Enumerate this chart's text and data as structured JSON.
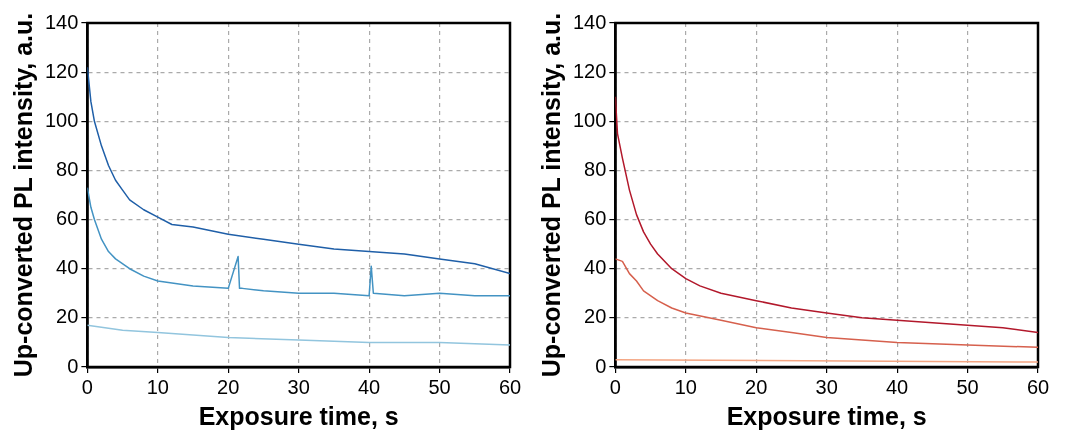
{
  "chart_data": [
    {
      "type": "line",
      "xlabel": "Exposure time, s",
      "ylabel": "Up‑converted PL intensity, a.u.",
      "xlim": [
        0,
        60
      ],
      "xticks": [
        0,
        10,
        20,
        30,
        40,
        50,
        60
      ],
      "ylim": [
        0,
        140
      ],
      "yticks": [
        0,
        20,
        40,
        60,
        80,
        100,
        120,
        140
      ],
      "grid": true,
      "marker": "none",
      "series": [
        {
          "color": "#1f5fa8",
          "x": [
            0,
            0.5,
            1,
            2,
            3,
            4,
            5,
            6,
            8,
            10,
            12,
            15,
            20,
            25,
            30,
            35,
            40,
            45,
            50,
            55,
            60
          ],
          "values": [
            122,
            108,
            100,
            90,
            82,
            76,
            72,
            68,
            64,
            61,
            58,
            57,
            54,
            52,
            50,
            48,
            47,
            46,
            44,
            42,
            38
          ]
        },
        {
          "color": "#4393c3",
          "x": [
            0,
            0.5,
            1,
            2,
            3,
            4,
            6,
            8,
            10,
            15,
            20,
            21.4,
            21.6,
            22,
            25,
            30,
            35,
            40,
            40.3,
            40.6,
            45,
            50,
            55,
            60
          ],
          "values": [
            73,
            65,
            60,
            52,
            47,
            44,
            40,
            37,
            35,
            33,
            32,
            45,
            32,
            32,
            31,
            30,
            30,
            29,
            41,
            30,
            29,
            30,
            29,
            29
          ]
        },
        {
          "color": "#92c5de",
          "x": [
            0,
            5,
            10,
            20,
            30,
            40,
            50,
            60
          ],
          "values": [
            17,
            15,
            14,
            12,
            11,
            10,
            10,
            9
          ]
        }
      ]
    },
    {
      "type": "line",
      "xlabel": "Exposure time, s",
      "ylabel": "Up‑converted PL intensity, a.u.",
      "xlim": [
        0,
        60
      ],
      "xticks": [
        0,
        10,
        20,
        30,
        40,
        50,
        60
      ],
      "ylim": [
        0,
        140
      ],
      "yticks": [
        0,
        20,
        40,
        60,
        80,
        100,
        120,
        140
      ],
      "grid": true,
      "marker": "none",
      "series": [
        {
          "color": "#b2182b",
          "x": [
            0,
            0.3,
            1,
            2,
            3,
            4,
            5,
            6,
            8,
            10,
            12,
            15,
            20,
            25,
            30,
            35,
            40,
            45,
            50,
            55,
            60
          ],
          "values": [
            110,
            95,
            85,
            72,
            62,
            55,
            50,
            46,
            40,
            36,
            33,
            30,
            27,
            24,
            22,
            20,
            19,
            18,
            17,
            16,
            14
          ]
        },
        {
          "color": "#d6604d",
          "x": [
            0,
            1,
            2,
            3,
            4,
            6,
            8,
            10,
            15,
            20,
            25,
            30,
            35,
            40,
            50,
            60
          ],
          "values": [
            44,
            43,
            38,
            35,
            31,
            27,
            24,
            22,
            19,
            16,
            14,
            12,
            11,
            10,
            9,
            8
          ]
        },
        {
          "color": "#f4a582",
          "x": [
            0,
            60
          ],
          "values": [
            3,
            2
          ]
        }
      ]
    }
  ]
}
